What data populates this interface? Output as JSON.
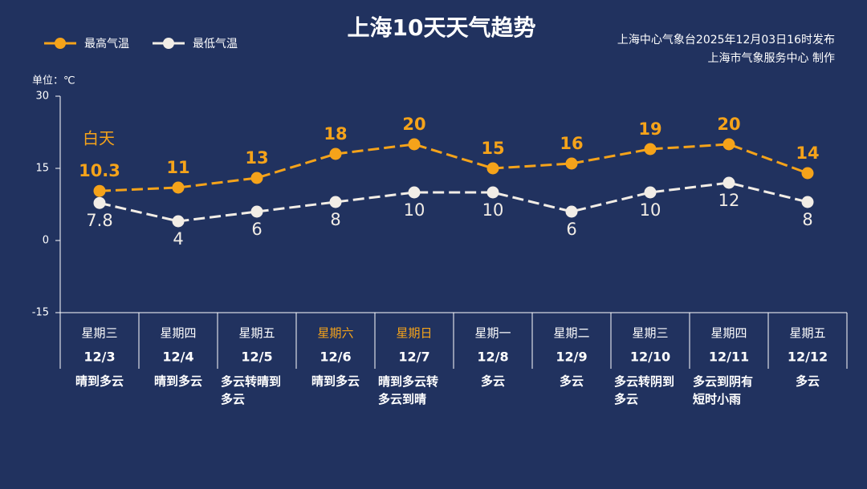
{
  "chart_data": {
    "type": "line",
    "title": "上海10天天气趋势",
    "source": [
      "上海中心气象台2025年12月03日16时发布",
      "上海市气象服务中心 制作"
    ],
    "unit_label": "单位：℃",
    "annotation": "白天",
    "categories": [
      "12/3",
      "12/4",
      "12/5",
      "12/6",
      "12/7",
      "12/8",
      "12/9",
      "12/10",
      "12/11",
      "12/12"
    ],
    "weekdays": [
      "星期三",
      "星期四",
      "星期五",
      "星期六",
      "星期日",
      "星期一",
      "星期二",
      "星期三",
      "星期四",
      "星期五"
    ],
    "weekday_colors": [
      "#ffffff",
      "#ffffff",
      "#ffffff",
      "#f5a31a",
      "#f5a31a",
      "#ffffff",
      "#ffffff",
      "#ffffff",
      "#ffffff",
      "#ffffff"
    ],
    "weather": [
      "晴到多云",
      "晴到多云",
      "多云转晴到多云",
      "晴到多云",
      "晴到多云转多云到晴",
      "多云",
      "多云",
      "多云转阴到多云",
      "多云到阴有短时小雨",
      "多云"
    ],
    "series": [
      {
        "name": "最高气温",
        "color": "#f5a31a",
        "values": [
          10.3,
          11,
          13,
          18,
          20,
          15,
          16,
          19,
          20,
          14
        ]
      },
      {
        "name": "最低气温",
        "color": "#f2ede6",
        "values": [
          7.8,
          4,
          6,
          8,
          10,
          10,
          6,
          10,
          12,
          8
        ]
      }
    ],
    "ylim": [
      -15,
      30
    ],
    "yticks": [
      -15,
      0,
      15,
      30
    ],
    "grid": false
  }
}
